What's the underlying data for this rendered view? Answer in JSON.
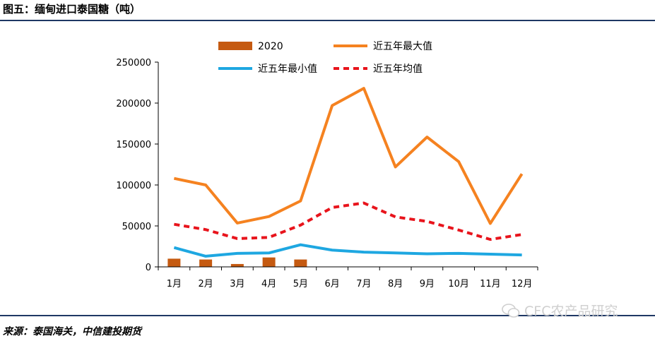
{
  "figure": {
    "title": "图五：缅甸进口泰国糖（吨）",
    "source": "来源：泰国海关，中信建投期货",
    "watermark": "CFC农产品研究"
  },
  "chart_data": {
    "type": "line",
    "categories": [
      "1月",
      "2月",
      "3月",
      "4月",
      "5月",
      "6月",
      "7月",
      "8月",
      "9月",
      "10月",
      "11月",
      "12月"
    ],
    "ylim": [
      0,
      250000
    ],
    "yticks": [
      0,
      50000,
      100000,
      150000,
      200000,
      250000
    ],
    "ytick_labels": [
      "0",
      "50000",
      "100000",
      "150000",
      "200000",
      "250000"
    ],
    "xlabel": "",
    "ylabel": "",
    "legend_position": "top",
    "series": [
      {
        "name": "2020",
        "type": "bar",
        "color": "#c55a11",
        "values": [
          10000,
          9000,
          3500,
          11500,
          9000,
          null,
          null,
          null,
          null,
          null,
          null,
          null
        ]
      },
      {
        "name": "近五年最大值",
        "type": "line",
        "color": "#f58220",
        "dash": "solid",
        "values": [
          108000,
          100000,
          53500,
          61500,
          80500,
          197000,
          218000,
          122000,
          158500,
          128500,
          53000,
          113500
        ]
      },
      {
        "name": "近五年最小值",
        "type": "line",
        "color": "#1ea7e1",
        "dash": "solid",
        "values": [
          23500,
          13000,
          16500,
          17000,
          27000,
          20500,
          18000,
          17000,
          16000,
          16500,
          15500,
          14500
        ]
      },
      {
        "name": "近五年均值",
        "type": "line",
        "color": "#e8141c",
        "dash": "dashed",
        "values": [
          52000,
          45500,
          34500,
          36000,
          51000,
          72500,
          78000,
          61000,
          55500,
          45000,
          33500,
          39500
        ]
      }
    ]
  }
}
